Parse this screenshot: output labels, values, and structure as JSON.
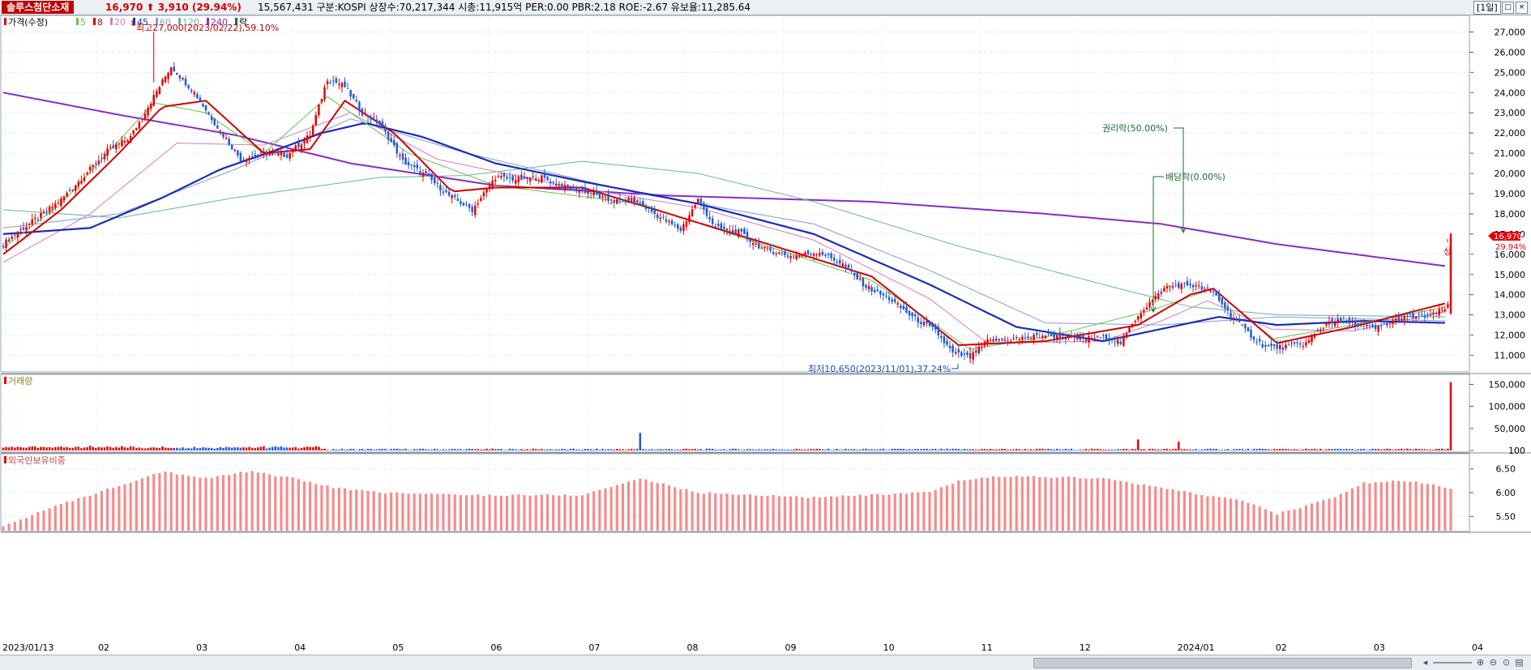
{
  "header": {
    "stock_name": "솔루스첨단소재",
    "price_text": "16,970 ⬆ 3,910 (29.94%)",
    "info_text": "15,567,431  구분:KOSPI 상장수:70,217,344 시총:11,915억 PER:0.00 PBR:2.18 ROE:-2.67 유보율:11,285.64",
    "period": "[1일]"
  },
  "legend": {
    "price_label": "가격(수정)",
    "ma_labels": [
      "5",
      "8",
      "20",
      "45",
      "60",
      "120",
      "240"
    ],
    "ex_label": "락",
    "volume_label": "거래량",
    "foreign_label": "외국인보유비중"
  },
  "colors": {
    "up": "#e60000",
    "down": "#1f5bd6",
    "ma5": "#6cc24a",
    "ma8": "#d00000",
    "ma20": "#d27fc4",
    "ma45": "#1a2db4",
    "ma60": "#8a97d8",
    "ma120": "#67b69a",
    "ma240": "#8a2bc4",
    "foreign_bar": "#f58c8c",
    "annotation": "#1d6b2c",
    "current_price_tag": "#e60000"
  },
  "annotations": {
    "high": "최고27,000(2023/02/22),59.10%",
    "low": "최저10,650(2023/11/01),37.24%",
    "rights_ex": "권리락(50.00%)",
    "dividend_ex": "배당락(0.00%)",
    "upper_limit": "상",
    "current_price": "16,970",
    "current_change": "29.94%"
  },
  "chart_data": [
    {
      "type": "candlestick",
      "title": "가격(수정)",
      "ylim": [
        10500,
        27500
      ],
      "y_ticks": [
        "11,000",
        "12,000",
        "13,000",
        "14,000",
        "15,000",
        "16,000",
        "17,000",
        "18,000",
        "19,000",
        "20,000",
        "21,000",
        "22,000",
        "23,000",
        "24,000",
        "25,000",
        "26,000",
        "27,000"
      ],
      "x_labels": [
        "2023/01/13",
        "02",
        "03",
        "04",
        "05",
        "06",
        "07",
        "08",
        "09",
        "10",
        "11",
        "12",
        "2024/01",
        "02",
        "03",
        "04"
      ],
      "close_path": [
        [
          0,
          16500
        ],
        [
          6,
          17200
        ],
        [
          12,
          17800
        ],
        [
          20,
          18700
        ],
        [
          28,
          19900
        ],
        [
          36,
          21100
        ],
        [
          44,
          21800
        ],
        [
          52,
          23800
        ],
        [
          58,
          25300
        ],
        [
          66,
          24000
        ],
        [
          74,
          22300
        ],
        [
          82,
          20700
        ],
        [
          90,
          21000
        ],
        [
          98,
          20900
        ],
        [
          106,
          21900
        ],
        [
          112,
          24700
        ],
        [
          118,
          24300
        ],
        [
          124,
          23000
        ],
        [
          130,
          22500
        ],
        [
          138,
          20600
        ],
        [
          146,
          19900
        ],
        [
          154,
          18900
        ],
        [
          162,
          18200
        ],
        [
          170,
          19800
        ],
        [
          178,
          19700
        ],
        [
          186,
          19800
        ],
        [
          194,
          19300
        ],
        [
          202,
          19100
        ],
        [
          210,
          18600
        ],
        [
          218,
          18700
        ],
        [
          226,
          17900
        ],
        [
          234,
          17200
        ],
        [
          240,
          18700
        ],
        [
          246,
          17300
        ],
        [
          254,
          17100
        ],
        [
          262,
          16300
        ],
        [
          272,
          15900
        ],
        [
          282,
          16100
        ],
        [
          290,
          15500
        ],
        [
          298,
          14400
        ],
        [
          306,
          13800
        ],
        [
          314,
          12900
        ],
        [
          322,
          12200
        ],
        [
          328,
          11100
        ],
        [
          334,
          10900
        ],
        [
          340,
          11700
        ],
        [
          350,
          11800
        ],
        [
          360,
          12000
        ],
        [
          372,
          11800
        ],
        [
          382,
          11900
        ],
        [
          386,
          11600
        ],
        [
          392,
          13000
        ],
        [
          396,
          13600
        ],
        [
          402,
          14400
        ],
        [
          410,
          14500
        ],
        [
          418,
          14100
        ],
        [
          424,
          13000
        ],
        [
          430,
          12100
        ],
        [
          436,
          11400
        ],
        [
          442,
          11400
        ],
        [
          450,
          11600
        ],
        [
          458,
          12700
        ],
        [
          466,
          12600
        ],
        [
          474,
          12300
        ],
        [
          482,
          12800
        ],
        [
          488,
          12900
        ],
        [
          494,
          13000
        ],
        [
          499,
          13400
        ],
        [
          500,
          16970
        ]
      ],
      "high_point": {
        "label": "최고",
        "value": 27000,
        "date": "2023/02/22"
      },
      "low_point": {
        "label": "최저",
        "value": 10650,
        "date": "2023/11/01"
      },
      "last": {
        "close": 16970,
        "change": 3910,
        "change_pct": 29.94
      },
      "moving_averages": {
        "ma5": [
          [
            0,
            16300
          ],
          [
            20,
            18500
          ],
          [
            52,
            23500
          ],
          [
            70,
            23000
          ],
          [
            90,
            21000
          ],
          [
            112,
            23800
          ],
          [
            140,
            21000
          ],
          [
            170,
            19400
          ],
          [
            220,
            18500
          ],
          [
            262,
            16500
          ],
          [
            300,
            14700
          ],
          [
            334,
            11300
          ],
          [
            360,
            11900
          ],
          [
            396,
            13200
          ],
          [
            418,
            14300
          ],
          [
            438,
            11800
          ],
          [
            466,
            12500
          ],
          [
            499,
            13400
          ]
        ],
        "ma8": [
          [
            0,
            16000
          ],
          [
            20,
            18200
          ],
          [
            40,
            21000
          ],
          [
            55,
            23300
          ],
          [
            70,
            23600
          ],
          [
            90,
            21000
          ],
          [
            106,
            21200
          ],
          [
            118,
            23600
          ],
          [
            135,
            22000
          ],
          [
            155,
            19100
          ],
          [
            170,
            19300
          ],
          [
            200,
            19300
          ],
          [
            230,
            18000
          ],
          [
            262,
            16600
          ],
          [
            300,
            14900
          ],
          [
            330,
            11500
          ],
          [
            360,
            11700
          ],
          [
            392,
            12500
          ],
          [
            410,
            14000
          ],
          [
            418,
            14300
          ],
          [
            440,
            11600
          ],
          [
            466,
            12400
          ],
          [
            499,
            13600
          ]
        ],
        "ma20": [
          [
            0,
            15600
          ],
          [
            30,
            18000
          ],
          [
            60,
            21500
          ],
          [
            90,
            21400
          ],
          [
            120,
            23000
          ],
          [
            150,
            20700
          ],
          [
            190,
            19500
          ],
          [
            240,
            18300
          ],
          [
            280,
            16700
          ],
          [
            320,
            13800
          ],
          [
            340,
            11600
          ],
          [
            380,
            11700
          ],
          [
            400,
            12700
          ],
          [
            416,
            13700
          ],
          [
            438,
            12300
          ],
          [
            466,
            12200
          ],
          [
            499,
            13200
          ]
        ],
        "ma45": [
          [
            0,
            17000
          ],
          [
            30,
            17300
          ],
          [
            55,
            18800
          ],
          [
            75,
            20200
          ],
          [
            95,
            21200
          ],
          [
            110,
            22000
          ],
          [
            125,
            22500
          ],
          [
            145,
            21800
          ],
          [
            170,
            20500
          ],
          [
            200,
            19600
          ],
          [
            240,
            18500
          ],
          [
            280,
            17000
          ],
          [
            320,
            14500
          ],
          [
            350,
            12400
          ],
          [
            380,
            11700
          ],
          [
            400,
            12300
          ],
          [
            420,
            12900
          ],
          [
            440,
            12500
          ],
          [
            470,
            12700
          ],
          [
            499,
            12600
          ]
        ],
        "ma60": [
          [
            0,
            17300
          ],
          [
            40,
            18000
          ],
          [
            80,
            20200
          ],
          [
            120,
            22700
          ],
          [
            160,
            21000
          ],
          [
            220,
            19000
          ],
          [
            280,
            17500
          ],
          [
            320,
            15200
          ],
          [
            360,
            12600
          ],
          [
            400,
            12500
          ],
          [
            440,
            12900
          ],
          [
            499,
            12700
          ]
        ],
        "ma120": [
          [
            0,
            18200
          ],
          [
            40,
            17800
          ],
          [
            80,
            18800
          ],
          [
            130,
            19800
          ],
          [
            160,
            19900
          ],
          [
            200,
            20600
          ],
          [
            240,
            20000
          ],
          [
            280,
            18600
          ],
          [
            330,
            16400
          ],
          [
            380,
            14500
          ],
          [
            410,
            13400
          ],
          [
            440,
            13000
          ],
          [
            499,
            12900
          ]
        ],
        "ma240": [
          [
            0,
            24000
          ],
          [
            40,
            22900
          ],
          [
            80,
            21900
          ],
          [
            120,
            20500
          ],
          [
            170,
            19400
          ],
          [
            230,
            18900
          ],
          [
            300,
            18600
          ],
          [
            360,
            18000
          ],
          [
            400,
            17500
          ],
          [
            440,
            16500
          ],
          [
            499,
            15400
          ]
        ]
      }
    },
    {
      "type": "bar",
      "title": "거래량",
      "ylim": [
        0,
        160000
      ],
      "y_ticks": [
        "150,000",
        "100,000",
        "50,000",
        "100"
      ],
      "notable": [
        {
          "x": 220,
          "value": 40000
        },
        {
          "x": 392,
          "value": 25000
        },
        {
          "x": 406,
          "value": 20000
        },
        {
          "x": 500,
          "value": 155000
        }
      ]
    },
    {
      "type": "bar",
      "title": "외국인보유비중",
      "ylim": [
        5.2,
        6.7
      ],
      "y_ticks": [
        "6.50",
        "6.00",
        "5.50"
      ],
      "path": [
        [
          0,
          5.3
        ],
        [
          15,
          5.65
        ],
        [
          35,
          6.05
        ],
        [
          55,
          6.45
        ],
        [
          70,
          6.3
        ],
        [
          85,
          6.45
        ],
        [
          100,
          6.3
        ],
        [
          115,
          6.1
        ],
        [
          130,
          6.0
        ],
        [
          160,
          5.95
        ],
        [
          200,
          5.95
        ],
        [
          220,
          6.3
        ],
        [
          240,
          6.0
        ],
        [
          280,
          5.9
        ],
        [
          320,
          6.0
        ],
        [
          330,
          6.25
        ],
        [
          345,
          6.35
        ],
        [
          380,
          6.3
        ],
        [
          390,
          6.2
        ],
        [
          410,
          6.0
        ],
        [
          430,
          5.8
        ],
        [
          440,
          5.55
        ],
        [
          460,
          5.9
        ],
        [
          470,
          6.2
        ],
        [
          485,
          6.25
        ],
        [
          500,
          6.1
        ]
      ]
    }
  ]
}
